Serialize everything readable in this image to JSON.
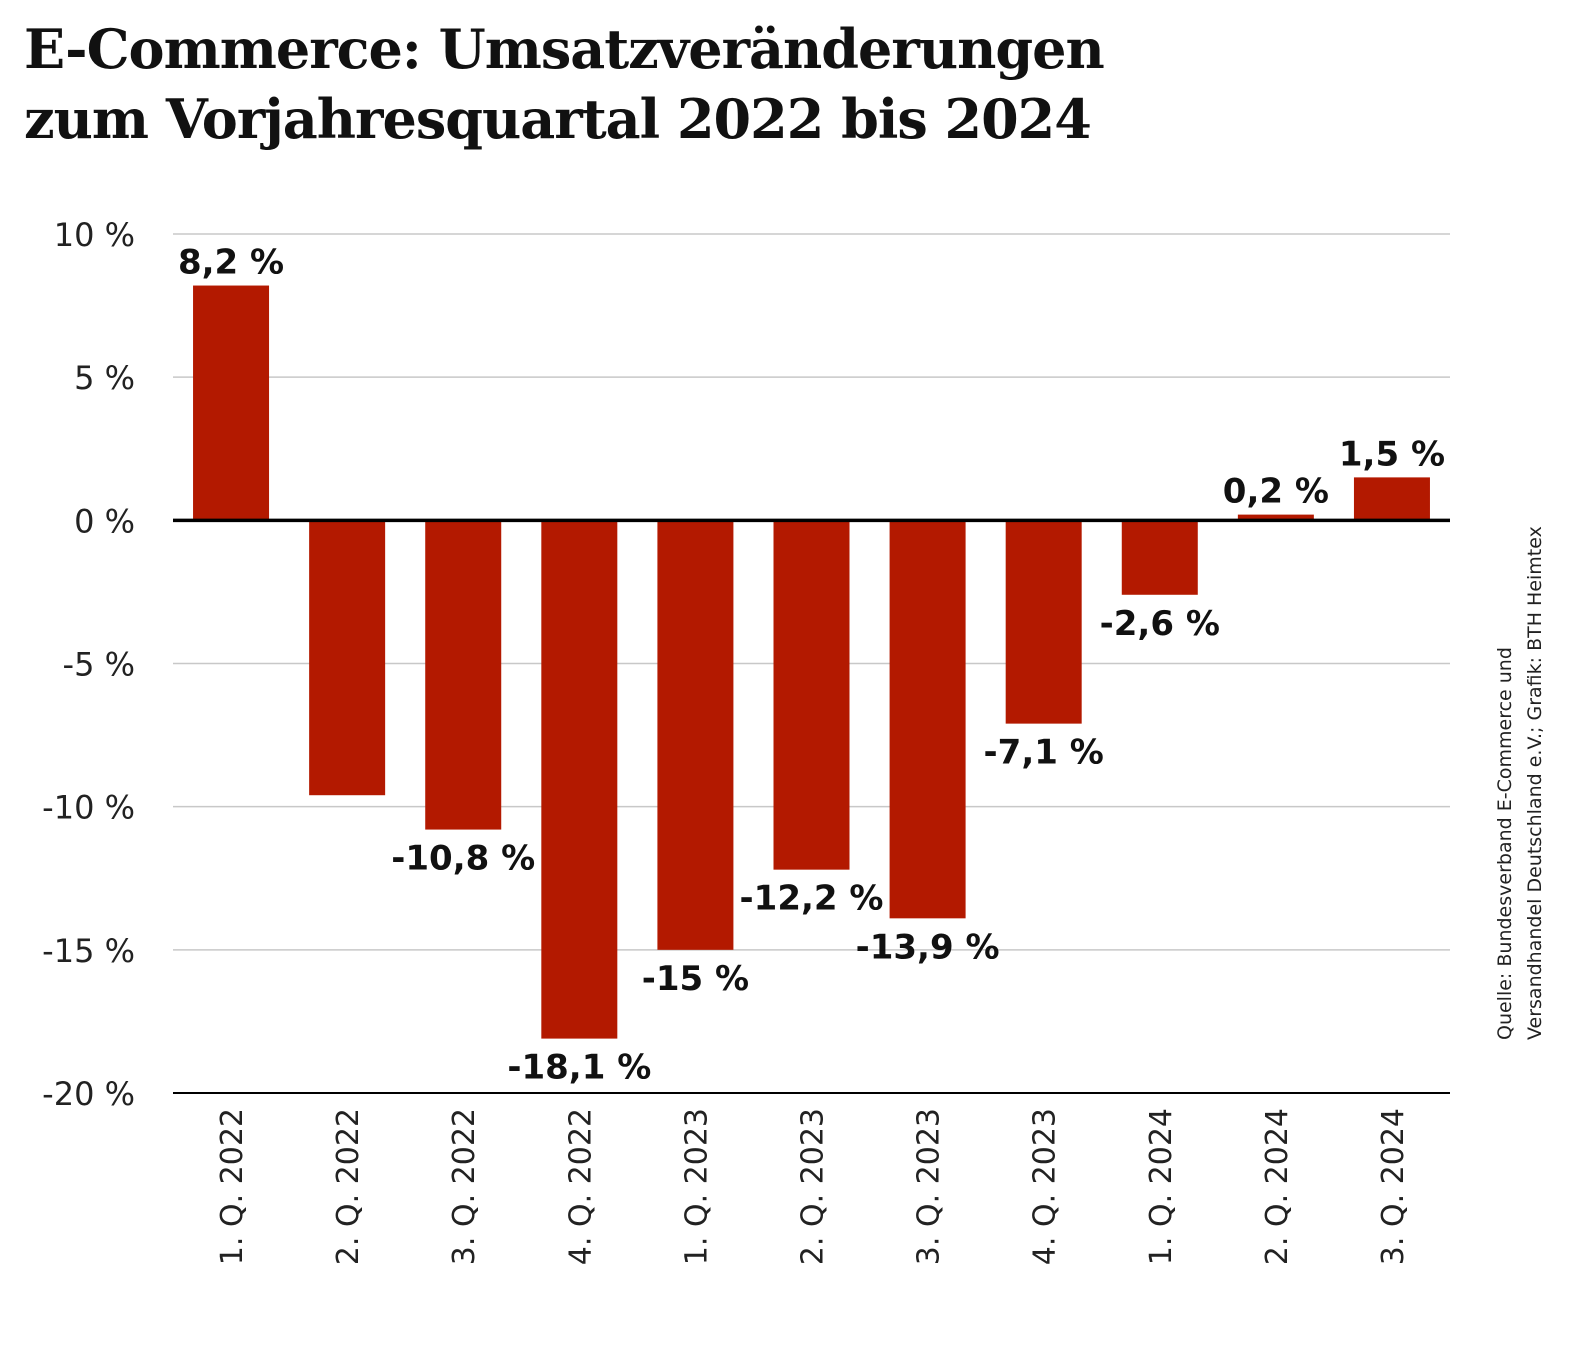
{
  "chart_data": {
    "type": "bar",
    "title": "E-Commerce: Umsatzveränderungen zum Vorjahresquartal 2022 bis 2024",
    "categories": [
      "1. Q. 2022",
      "2. Q. 2022",
      "3. Q. 2022",
      "4. Q. 2022",
      "1. Q. 2023",
      "2. Q. 2023",
      "3. Q. 2023",
      "4. Q. 2023",
      "1. Q. 2024",
      "2. Q. 2024",
      "3. Q. 2024"
    ],
    "values": [
      8.2,
      -9.6,
      -10.8,
      -18.1,
      -15,
      -12.2,
      -13.9,
      -7.1,
      -2.6,
      0.2,
      1.5
    ],
    "data_labels": [
      "8,2 %",
      "",
      "-10,8 %",
      "-18,1 %",
      "-15 %",
      "-12,2 %",
      "-13,9 %",
      "-7,1 %",
      "-2,6 %",
      "0,2 %",
      "1,5 %"
    ],
    "yticks": [
      10,
      5,
      0,
      -5,
      -10,
      -15,
      -20
    ],
    "ytick_labels": [
      "10 %",
      "5 %",
      "0 %",
      "-5 %",
      "-10 %",
      "-15 %",
      "-20 %"
    ],
    "ylim": [
      -20,
      10
    ],
    "grid": true,
    "bar_color": "#b31900",
    "xlabel": "",
    "ylabel": ""
  },
  "title_lines": [
    "E-Commerce: Umsatzveränderungen",
    "zum Vorjahresquartal 2022 bis 2024"
  ],
  "source_lines": [
    "Quelle: Bundesverband E-Commerce und",
    "Versandhandel Deutschland e.V.; Grafik: BTH Heimtex"
  ]
}
